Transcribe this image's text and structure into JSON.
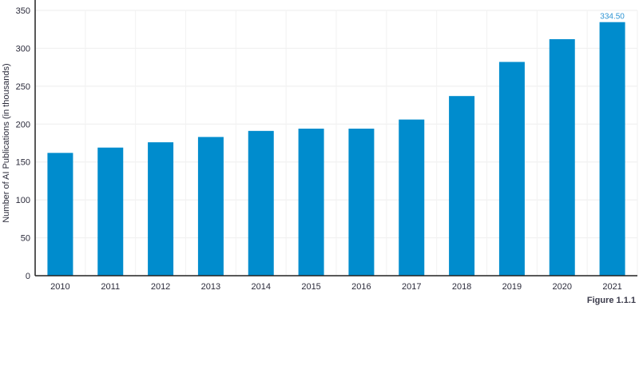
{
  "chart_data": {
    "type": "bar",
    "categories": [
      "2010",
      "2011",
      "2012",
      "2013",
      "2014",
      "2015",
      "2016",
      "2017",
      "2018",
      "2019",
      "2020",
      "2021"
    ],
    "values": [
      162,
      169,
      176,
      183,
      191,
      194,
      194,
      206,
      237,
      282,
      312,
      334.5
    ],
    "ylabel": "Number of AI Publications (in thousands)",
    "xlabel": "",
    "ylim": [
      0,
      350
    ],
    "yticks": [
      0,
      50,
      100,
      150,
      200,
      250,
      300,
      350
    ],
    "grid": true,
    "bar_color": "#008ccd",
    "annotations": [
      {
        "category": "2021",
        "text": "334.50"
      }
    ]
  },
  "figure_label": "Figure 1.1.1"
}
